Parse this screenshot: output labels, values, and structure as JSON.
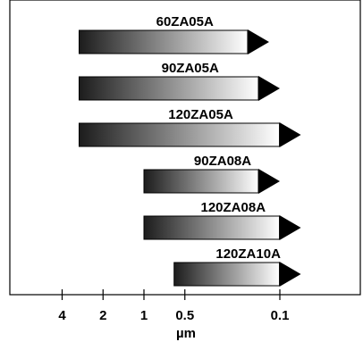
{
  "chart_data": {
    "type": "bar",
    "orientation": "horizontal",
    "scale": "log",
    "xlabel": "µm",
    "tick_labels": [
      "4",
      "2",
      "1",
      "0.5",
      "0.1"
    ],
    "tick_values": [
      4,
      2,
      1,
      0.5,
      0.1
    ],
    "bars": [
      {
        "name": "60ZA05A",
        "start": 3,
        "end": 0.12
      },
      {
        "name": "90ZA05A",
        "start": 3,
        "end": 0.1
      },
      {
        "name": "120ZA05A",
        "start": 3,
        "end": 0.07
      },
      {
        "name": "90ZA08A",
        "start": 1,
        "end": 0.1
      },
      {
        "name": "120ZA08A",
        "start": 1,
        "end": 0.07
      },
      {
        "name": "120ZA10A",
        "start": 0.6,
        "end": 0.07
      }
    ],
    "colors": {
      "gradient_dark": "#1c1c1c",
      "gradient_light": "#ffffff",
      "arrow": "#000000"
    }
  }
}
